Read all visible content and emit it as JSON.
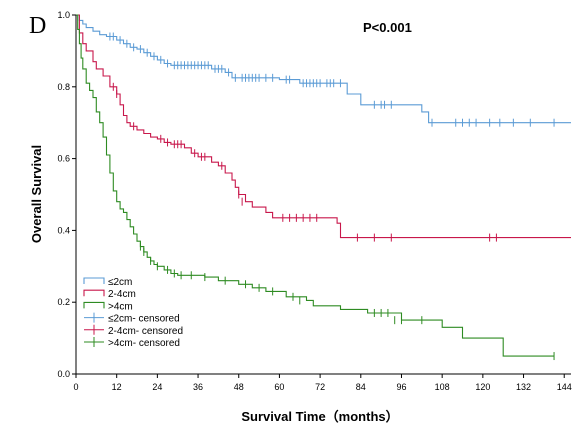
{
  "panel_label": "D",
  "p_value": "P<0.001",
  "chart_data": {
    "type": "line",
    "step": true,
    "title": "",
    "xlabel": "Survival Time（months）",
    "ylabel": "Overall Survival",
    "xlim": [
      0,
      146
    ],
    "ylim": [
      0.0,
      1.0
    ],
    "x_ticks": [
      0,
      12,
      24,
      36,
      48,
      60,
      72,
      84,
      96,
      108,
      120,
      132,
      144
    ],
    "y_ticks": [
      0.0,
      0.2,
      0.4,
      0.6,
      0.8,
      1.0
    ],
    "y_tick_labels": [
      "0.0",
      "0.2",
      "0.4",
      "0.6",
      "0.8",
      "1.0"
    ],
    "grid": false,
    "legend_position": "bottom-left",
    "legend": [
      {
        "label": "≤2cm",
        "kind": "line",
        "color": "#5b9bd5"
      },
      {
        "label": "2-4cm",
        "kind": "line",
        "color": "#c8174b"
      },
      {
        "label": ">4cm",
        "kind": "line",
        "color": "#2e8b22"
      },
      {
        "label": "≤2cm- censored",
        "kind": "censor",
        "color": "#5b9bd5"
      },
      {
        "label": "2-4cm- censored",
        "kind": "censor",
        "color": "#c8174b"
      },
      {
        "label": ">4cm- censored",
        "kind": "censor",
        "color": "#2e8b22"
      }
    ],
    "series": [
      {
        "name": "≤2cm",
        "color": "#5b9bd5",
        "steps": [
          [
            0,
            1.0
          ],
          [
            1,
            0.985
          ],
          [
            2,
            0.975
          ],
          [
            3,
            0.965
          ],
          [
            5,
            0.955
          ],
          [
            7,
            0.945
          ],
          [
            9,
            0.94
          ],
          [
            12,
            0.93
          ],
          [
            14,
            0.92
          ],
          [
            16,
            0.91
          ],
          [
            18,
            0.905
          ],
          [
            20,
            0.895
          ],
          [
            22,
            0.885
          ],
          [
            24,
            0.875
          ],
          [
            26,
            0.865
          ],
          [
            28,
            0.86
          ],
          [
            40,
            0.85
          ],
          [
            44,
            0.84
          ],
          [
            46,
            0.825
          ],
          [
            60,
            0.82
          ],
          [
            66,
            0.81
          ],
          [
            80,
            0.78
          ],
          [
            84,
            0.75
          ],
          [
            102,
            0.73
          ],
          [
            104,
            0.7
          ],
          [
            146,
            0.7
          ]
        ],
        "censored": [
          [
            10,
            0.94
          ],
          [
            11,
            0.94
          ],
          [
            13,
            0.93
          ],
          [
            15,
            0.92
          ],
          [
            17,
            0.91
          ],
          [
            19,
            0.905
          ],
          [
            21,
            0.895
          ],
          [
            23,
            0.885
          ],
          [
            25,
            0.875
          ],
          [
            27,
            0.865
          ],
          [
            29,
            0.86
          ],
          [
            30,
            0.86
          ],
          [
            31,
            0.86
          ],
          [
            32,
            0.86
          ],
          [
            33,
            0.86
          ],
          [
            34,
            0.86
          ],
          [
            35,
            0.86
          ],
          [
            36,
            0.86
          ],
          [
            37,
            0.86
          ],
          [
            38,
            0.86
          ],
          [
            39,
            0.86
          ],
          [
            41,
            0.85
          ],
          [
            42,
            0.85
          ],
          [
            43,
            0.85
          ],
          [
            45,
            0.84
          ],
          [
            47,
            0.825
          ],
          [
            49,
            0.825
          ],
          [
            50,
            0.825
          ],
          [
            51,
            0.825
          ],
          [
            52,
            0.825
          ],
          [
            53,
            0.825
          ],
          [
            54,
            0.825
          ],
          [
            56,
            0.825
          ],
          [
            58,
            0.825
          ],
          [
            62,
            0.82
          ],
          [
            63,
            0.82
          ],
          [
            67,
            0.81
          ],
          [
            68,
            0.81
          ],
          [
            69,
            0.81
          ],
          [
            70,
            0.81
          ],
          [
            71,
            0.81
          ],
          [
            72,
            0.81
          ],
          [
            74,
            0.81
          ],
          [
            75,
            0.81
          ],
          [
            76,
            0.81
          ],
          [
            78,
            0.81
          ],
          [
            88,
            0.75
          ],
          [
            90,
            0.75
          ],
          [
            91,
            0.75
          ],
          [
            93,
            0.75
          ],
          [
            105,
            0.7
          ],
          [
            112,
            0.7
          ],
          [
            114,
            0.7
          ],
          [
            116,
            0.7
          ],
          [
            118,
            0.7
          ],
          [
            122,
            0.7
          ],
          [
            125,
            0.7
          ],
          [
            129,
            0.7
          ],
          [
            134,
            0.7
          ],
          [
            141,
            0.7
          ]
        ]
      },
      {
        "name": "2-4cm",
        "color": "#c8174b",
        "steps": [
          [
            0,
            1.0
          ],
          [
            1,
            0.95
          ],
          [
            2,
            0.92
          ],
          [
            3,
            0.9
          ],
          [
            5,
            0.87
          ],
          [
            6,
            0.85
          ],
          [
            8,
            0.83
          ],
          [
            10,
            0.8
          ],
          [
            12,
            0.78
          ],
          [
            13,
            0.75
          ],
          [
            14,
            0.72
          ],
          [
            15,
            0.7
          ],
          [
            16,
            0.69
          ],
          [
            18,
            0.68
          ],
          [
            20,
            0.67
          ],
          [
            22,
            0.66
          ],
          [
            24,
            0.655
          ],
          [
            26,
            0.645
          ],
          [
            28,
            0.64
          ],
          [
            32,
            0.63
          ],
          [
            34,
            0.615
          ],
          [
            36,
            0.605
          ],
          [
            40,
            0.59
          ],
          [
            42,
            0.58
          ],
          [
            44,
            0.56
          ],
          [
            46,
            0.54
          ],
          [
            47,
            0.52
          ],
          [
            48,
            0.5
          ],
          [
            50,
            0.48
          ],
          [
            52,
            0.465
          ],
          [
            56,
            0.45
          ],
          [
            58,
            0.435
          ],
          [
            77,
            0.42
          ],
          [
            78,
            0.38
          ],
          [
            146,
            0.38
          ]
        ],
        "censored": [
          [
            11,
            0.8
          ],
          [
            12,
            0.78
          ],
          [
            17,
            0.69
          ],
          [
            25,
            0.655
          ],
          [
            27,
            0.645
          ],
          [
            29,
            0.64
          ],
          [
            30,
            0.64
          ],
          [
            31,
            0.64
          ],
          [
            35,
            0.615
          ],
          [
            37,
            0.605
          ],
          [
            38,
            0.605
          ],
          [
            43,
            0.58
          ],
          [
            48,
            0.5
          ],
          [
            49,
            0.48
          ],
          [
            61,
            0.435
          ],
          [
            63,
            0.435
          ],
          [
            65,
            0.435
          ],
          [
            67,
            0.435
          ],
          [
            69,
            0.435
          ],
          [
            71,
            0.435
          ],
          [
            83,
            0.38
          ],
          [
            88,
            0.38
          ],
          [
            93,
            0.38
          ],
          [
            122,
            0.38
          ],
          [
            124,
            0.38
          ]
        ]
      },
      {
        "name": ">4cm",
        "color": "#2e8b22",
        "steps": [
          [
            0,
            1.0
          ],
          [
            0.5,
            0.96
          ],
          [
            1,
            0.92
          ],
          [
            1.5,
            0.88
          ],
          [
            2,
            0.85
          ],
          [
            3,
            0.81
          ],
          [
            4,
            0.79
          ],
          [
            5,
            0.77
          ],
          [
            6,
            0.73
          ],
          [
            7,
            0.7
          ],
          [
            8,
            0.66
          ],
          [
            9,
            0.61
          ],
          [
            10,
            0.56
          ],
          [
            11,
            0.51
          ],
          [
            12,
            0.48
          ],
          [
            13,
            0.46
          ],
          [
            14,
            0.45
          ],
          [
            15,
            0.43
          ],
          [
            16,
            0.41
          ],
          [
            17,
            0.39
          ],
          [
            18,
            0.37
          ],
          [
            19,
            0.355
          ],
          [
            20,
            0.34
          ],
          [
            21,
            0.325
          ],
          [
            22,
            0.315
          ],
          [
            23,
            0.305
          ],
          [
            24,
            0.3
          ],
          [
            26,
            0.29
          ],
          [
            28,
            0.28
          ],
          [
            30,
            0.275
          ],
          [
            38,
            0.27
          ],
          [
            42,
            0.26
          ],
          [
            48,
            0.25
          ],
          [
            52,
            0.24
          ],
          [
            56,
            0.23
          ],
          [
            62,
            0.215
          ],
          [
            68,
            0.205
          ],
          [
            70,
            0.19
          ],
          [
            78,
            0.18
          ],
          [
            86,
            0.17
          ],
          [
            96,
            0.15
          ],
          [
            108,
            0.13
          ],
          [
            114,
            0.1
          ],
          [
            126,
            0.05
          ],
          [
            141,
            0.05
          ]
        ],
        "censored": [
          [
            19,
            0.355
          ],
          [
            20,
            0.34
          ],
          [
            22,
            0.315
          ],
          [
            24,
            0.3
          ],
          [
            27,
            0.29
          ],
          [
            29,
            0.28
          ],
          [
            31,
            0.275
          ],
          [
            34,
            0.275
          ],
          [
            38,
            0.27
          ],
          [
            44,
            0.26
          ],
          [
            50,
            0.25
          ],
          [
            54,
            0.24
          ],
          [
            58,
            0.23
          ],
          [
            64,
            0.215
          ],
          [
            66,
            0.205
          ],
          [
            88,
            0.17
          ],
          [
            90,
            0.17
          ],
          [
            92,
            0.17
          ],
          [
            94,
            0.15
          ],
          [
            96,
            0.15
          ],
          [
            102,
            0.15
          ],
          [
            141,
            0.05
          ]
        ]
      }
    ]
  }
}
